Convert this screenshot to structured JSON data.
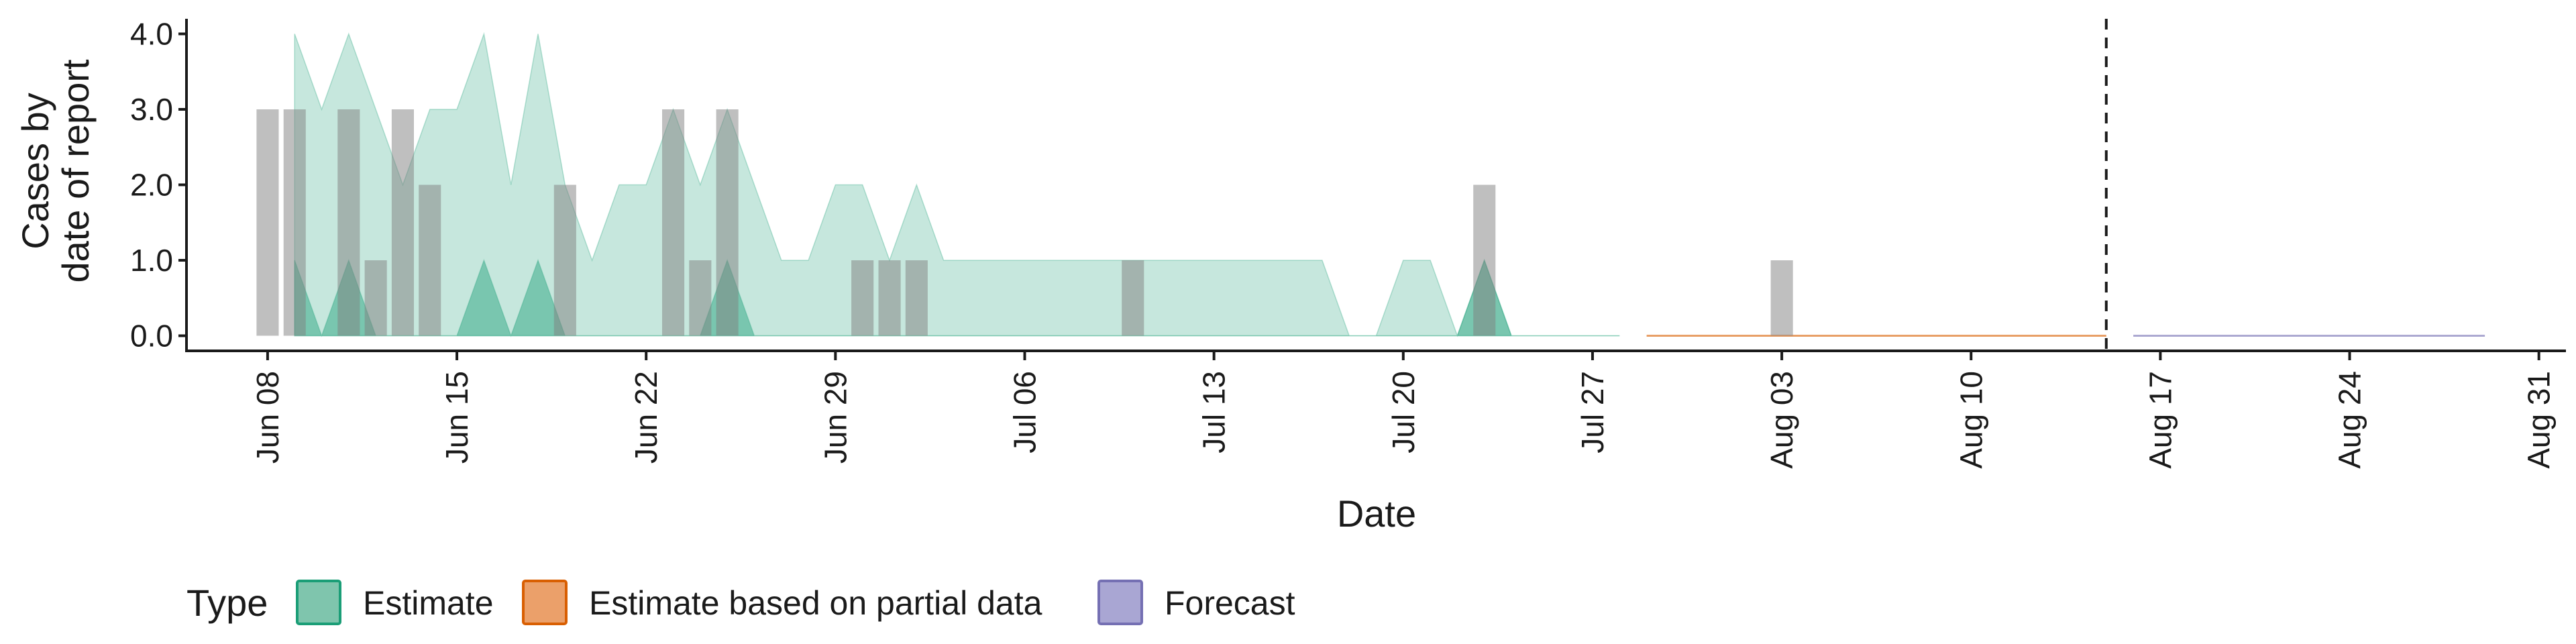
{
  "chart_data": {
    "type": "area",
    "xlabel": "Date",
    "ylabel_lines": [
      "Cases by",
      "date of report"
    ],
    "x_range": [
      "2020-06-05",
      "2020-09-01"
    ],
    "ylim": [
      -0.2,
      4.2
    ],
    "y_ticks": [
      0,
      1,
      2,
      3,
      4
    ],
    "y_tick_labels": [
      "0.0",
      "1.0",
      "2.0",
      "3.0",
      "4.0"
    ],
    "x_ticks": [
      "2020-06-08",
      "2020-06-15",
      "2020-06-22",
      "2020-06-29",
      "2020-07-06",
      "2020-07-13",
      "2020-07-20",
      "2020-07-27",
      "2020-08-03",
      "2020-08-10",
      "2020-08-17",
      "2020-08-24",
      "2020-08-31"
    ],
    "x_tick_labels": [
      "Jun 08",
      "Jun 15",
      "Jun 22",
      "Jun 29",
      "Jul 06",
      "Jul 13",
      "Jul 20",
      "Jul 27",
      "Aug 03",
      "Aug 10",
      "Aug 17",
      "Aug 24",
      "Aug 31"
    ],
    "grid": false,
    "forecast_date": "2020-08-15",
    "observed_cases": [
      {
        "date": "2020-06-08",
        "value": 3
      },
      {
        "date": "2020-06-09",
        "value": 3
      },
      {
        "date": "2020-06-11",
        "value": 3
      },
      {
        "date": "2020-06-12",
        "value": 1
      },
      {
        "date": "2020-06-13",
        "value": 3
      },
      {
        "date": "2020-06-14",
        "value": 2
      },
      {
        "date": "2020-06-19",
        "value": 2
      },
      {
        "date": "2020-06-23",
        "value": 3
      },
      {
        "date": "2020-06-24",
        "value": 1
      },
      {
        "date": "2020-06-25",
        "value": 3
      },
      {
        "date": "2020-06-30",
        "value": 1
      },
      {
        "date": "2020-07-01",
        "value": 1
      },
      {
        "date": "2020-07-02",
        "value": 1
      },
      {
        "date": "2020-07-10",
        "value": 1
      },
      {
        "date": "2020-07-23",
        "value": 2
      },
      {
        "date": "2020-08-03",
        "value": 1
      }
    ],
    "bands": [
      {
        "type": "Estimate",
        "color": "#1b9e77",
        "opacity": 0.25,
        "x": [
          "2020-06-09",
          "2020-06-10",
          "2020-06-11",
          "2020-06-12",
          "2020-06-13",
          "2020-06-14",
          "2020-06-15",
          "2020-06-16",
          "2020-06-17",
          "2020-06-18",
          "2020-06-19",
          "2020-06-20",
          "2020-06-21",
          "2020-06-22",
          "2020-06-23",
          "2020-06-24",
          "2020-06-25",
          "2020-06-26",
          "2020-06-27",
          "2020-06-28",
          "2020-06-29",
          "2020-06-30",
          "2020-07-01",
          "2020-07-02",
          "2020-07-03",
          "2020-07-04",
          "2020-07-05",
          "2020-07-06",
          "2020-07-07",
          "2020-07-08",
          "2020-07-09",
          "2020-07-10",
          "2020-07-11",
          "2020-07-12",
          "2020-07-13",
          "2020-07-14",
          "2020-07-15",
          "2020-07-16",
          "2020-07-17",
          "2020-07-18",
          "2020-07-19",
          "2020-07-20",
          "2020-07-21",
          "2020-07-22",
          "2020-07-23",
          "2020-07-24",
          "2020-07-25",
          "2020-07-26",
          "2020-07-27",
          "2020-07-28"
        ],
        "lower": [
          0,
          0,
          0,
          0,
          0,
          0,
          0,
          0,
          0,
          0,
          0,
          0,
          0,
          0,
          0,
          0,
          0,
          0,
          0,
          0,
          0,
          0,
          0,
          0,
          0,
          0,
          0,
          0,
          0,
          0,
          0,
          0,
          0,
          0,
          0,
          0,
          0,
          0,
          0,
          0,
          0,
          0,
          0,
          0,
          0,
          0,
          0,
          0,
          0,
          0
        ],
        "upper": [
          4,
          3,
          4,
          3,
          2,
          3,
          3,
          4,
          2,
          4,
          2,
          1,
          2,
          2,
          3,
          2,
          3,
          2,
          1,
          1,
          2,
          2,
          1,
          2,
          1,
          1,
          1,
          1,
          1,
          1,
          1,
          1,
          1,
          1,
          1,
          1,
          1,
          1,
          1,
          0,
          0,
          1,
          1,
          0,
          1,
          0,
          0,
          0,
          0,
          0
        ]
      },
      {
        "type": "Estimate",
        "color": "#1b9e77",
        "opacity": 0.45,
        "x": [
          "2020-06-09",
          "2020-06-10",
          "2020-06-11",
          "2020-06-12",
          "2020-06-13",
          "2020-06-14",
          "2020-06-15",
          "2020-06-16",
          "2020-06-17",
          "2020-06-18",
          "2020-06-19",
          "2020-06-20",
          "2020-06-21",
          "2020-06-22",
          "2020-06-23",
          "2020-06-24",
          "2020-06-25",
          "2020-06-26",
          "2020-06-27",
          "2020-06-28",
          "2020-06-29",
          "2020-06-30",
          "2020-07-01",
          "2020-07-02",
          "2020-07-03",
          "2020-07-04",
          "2020-07-05",
          "2020-07-06",
          "2020-07-07",
          "2020-07-08",
          "2020-07-09",
          "2020-07-10",
          "2020-07-11",
          "2020-07-12",
          "2020-07-13",
          "2020-07-14",
          "2020-07-15",
          "2020-07-16",
          "2020-07-17",
          "2020-07-18",
          "2020-07-19",
          "2020-07-20",
          "2020-07-21",
          "2020-07-22",
          "2020-07-23",
          "2020-07-24",
          "2020-07-25",
          "2020-07-26",
          "2020-07-27",
          "2020-07-28"
        ],
        "lower": [
          0,
          0,
          0,
          0,
          0,
          0,
          0,
          0,
          0,
          0,
          0,
          0,
          0,
          0,
          0,
          0,
          0,
          0,
          0,
          0,
          0,
          0,
          0,
          0,
          0,
          0,
          0,
          0,
          0,
          0,
          0,
          0,
          0,
          0,
          0,
          0,
          0,
          0,
          0,
          0,
          0,
          0,
          0,
          0,
          0,
          0,
          0,
          0,
          0,
          0
        ],
        "upper": [
          1,
          0,
          1,
          0,
          0,
          0,
          0,
          1,
          0,
          1,
          0,
          0,
          0,
          0,
          0,
          0,
          1,
          0,
          0,
          0,
          0,
          0,
          0,
          0,
          0,
          0,
          0,
          0,
          0,
          0,
          0,
          0,
          0,
          0,
          0,
          0,
          0,
          0,
          0,
          0,
          0,
          0,
          0,
          0,
          1,
          0,
          0,
          0,
          0,
          0
        ]
      },
      {
        "type": "Estimate based on partial data",
        "color": "#d95f02",
        "opacity": 0.4,
        "x": [
          "2020-07-29",
          "2020-08-15"
        ],
        "lower": [
          0,
          0
        ],
        "upper": [
          0,
          0
        ]
      },
      {
        "type": "Forecast",
        "color": "#7570b3",
        "opacity": 0.4,
        "x": [
          "2020-08-16",
          "2020-08-29"
        ],
        "lower": [
          0,
          0
        ],
        "upper": [
          0,
          0
        ]
      }
    ],
    "legend": {
      "title": "Type",
      "position": "bottom",
      "items": [
        {
          "label": "Estimate",
          "fill": "#7fc5ad",
          "stroke": "#1b9e77"
        },
        {
          "label": "Estimate based on partial data",
          "fill": "#eba06a",
          "stroke": "#d95f02"
        },
        {
          "label": "Forecast",
          "fill": "#a9a6d3",
          "stroke": "#7570b3"
        }
      ]
    }
  }
}
